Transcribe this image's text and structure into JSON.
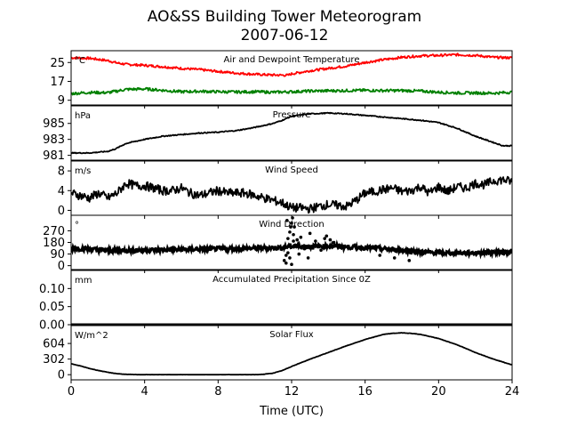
{
  "figure": {
    "title": "AO&SS Building Tower Meteorogram",
    "subtitle": "2007-06-12",
    "xlabel": "Time (UTC)"
  },
  "chart_data": [
    {
      "id": "temp",
      "type": "line",
      "title": "Air and Dewpoint Temperature",
      "unit": "°C",
      "ylim": [
        7,
        30
      ],
      "yticks": [
        9,
        17,
        25
      ],
      "xlim": [
        0,
        24
      ],
      "series": [
        {
          "color": "#ff0000",
          "x": [
            0,
            1,
            2,
            2.5,
            3,
            4,
            5,
            6,
            7,
            8,
            9,
            10,
            11,
            11.8,
            12,
            13,
            14,
            15,
            16,
            17,
            18,
            19,
            20,
            21,
            22,
            23,
            24
          ],
          "y": [
            27,
            26.8,
            25.8,
            24.8,
            24.2,
            23.8,
            23.2,
            22.5,
            22,
            21.2,
            20.5,
            20,
            19.7,
            19.6,
            20.2,
            21.5,
            22.5,
            23.5,
            25,
            26.2,
            27.2,
            27.8,
            28,
            28.3,
            28,
            27.2,
            27
          ]
        },
        {
          "color": "#008000",
          "x": [
            0,
            1,
            2,
            3,
            4,
            5,
            6,
            7,
            8,
            9,
            10,
            11,
            12,
            13,
            14,
            15,
            16,
            17,
            18,
            19,
            20,
            21,
            22,
            23,
            24
          ],
          "y": [
            11.8,
            12.3,
            12.2,
            13.6,
            13.8,
            13.2,
            12.6,
            12.8,
            12.6,
            12.5,
            12.6,
            12.4,
            12.6,
            12.9,
            13,
            13.1,
            13.2,
            13.1,
            13.1,
            12.9,
            12.4,
            12.1,
            12.1,
            12,
            12.4
          ]
        }
      ]
    },
    {
      "id": "pres",
      "type": "line",
      "title": "Pressure",
      "unit": "hPa",
      "ylim": [
        980.4,
        987.2
      ],
      "yticks": [
        981,
        983,
        985
      ],
      "xlim": [
        0,
        24
      ],
      "series": [
        {
          "color": "#000000",
          "x": [
            0,
            1,
            2,
            2.4,
            3,
            4,
            5,
            6,
            7,
            8,
            9,
            10,
            11,
            11.5,
            12,
            13,
            14,
            15,
            16,
            17,
            18,
            19,
            20,
            21,
            22,
            23,
            23.5,
            24
          ],
          "y": [
            981.3,
            981.3,
            981.5,
            981.8,
            982.5,
            983,
            983.4,
            983.6,
            983.8,
            983.9,
            984.1,
            984.5,
            985,
            985.4,
            985.9,
            986.2,
            986.3,
            986.2,
            986,
            985.8,
            985.6,
            985.4,
            985.1,
            984.4,
            983.4,
            982.6,
            982.2,
            982.2
          ]
        }
      ]
    },
    {
      "id": "wspd",
      "type": "line",
      "title": "Wind Speed",
      "unit": "m/s",
      "ylim": [
        -1,
        10
      ],
      "yticks": [
        0,
        4,
        8
      ],
      "xlim": [
        0,
        24
      ],
      "series": [
        {
          "color": "#000000",
          "x": [
            0,
            0.5,
            1,
            1.5,
            2,
            2.5,
            3,
            3.5,
            4,
            4.5,
            5,
            5.5,
            6,
            6.5,
            7,
            7.5,
            8,
            8.5,
            9,
            9.5,
            10,
            10.5,
            11,
            11.5,
            12,
            12.5,
            13,
            13.5,
            14,
            14.5,
            15,
            15.5,
            16,
            16.5,
            17,
            17.5,
            18,
            18.5,
            19,
            19.5,
            20,
            20.5,
            21,
            21.5,
            22,
            22.5,
            23,
            23.5,
            24
          ],
          "y": [
            3.5,
            3,
            2.5,
            3.5,
            2.5,
            3.5,
            5.5,
            5,
            5,
            4.5,
            4,
            4,
            4.5,
            3.5,
            3,
            3.5,
            4,
            3.5,
            3.5,
            3.5,
            3,
            2.5,
            2,
            1.5,
            0.5,
            0.5,
            0.3,
            0.8,
            1.2,
            1,
            0.8,
            2,
            3.5,
            3.8,
            4.2,
            4.5,
            3.8,
            4,
            4.8,
            3.5,
            4.8,
            3.8,
            4.8,
            4.5,
            5.5,
            5.2,
            6,
            6.2,
            5.8
          ]
        }
      ]
    },
    {
      "id": "wdir",
      "type": "scatter",
      "title": "Wind Direction",
      "unit": "°",
      "ylim": [
        -30,
        390
      ],
      "yticks": [
        0,
        90,
        180,
        270
      ],
      "xlim": [
        0,
        24
      ],
      "series": [
        {
          "color": "#000000",
          "band": {
            "x": [
              0,
              1,
              2,
              3,
              4,
              5,
              6,
              7,
              8,
              9,
              10,
              11,
              11.5,
              12,
              12.5,
              13,
              14,
              15,
              16,
              17,
              18,
              19,
              20,
              21,
              22,
              23,
              24
            ],
            "y": [
              135,
              128,
              118,
              118,
              120,
              122,
              125,
              128,
              130,
              132,
              135,
              138,
              140,
              150,
              150,
              148,
              152,
              145,
              140,
              130,
              120,
              105,
              100,
              98,
              100,
              105,
              108
            ]
          },
          "scatter_x": [
            11.6,
            11.7,
            11.8,
            11.9,
            11.95,
            12,
            12.05,
            12.1,
            12.2,
            11.7,
            11.8,
            11.9,
            12.0,
            12.1,
            12.3,
            12.5,
            12.7,
            12.9,
            13.1,
            13.3,
            13.6,
            13.9,
            14.1,
            14.3,
            14.6,
            12.4,
            13.0,
            13.8,
            16.8,
            17.6,
            18.4,
            11.75,
            12.15
          ],
          "scatter_y": [
            40,
            80,
            210,
            260,
            300,
            330,
            370,
            240,
            160,
            20,
            100,
            60,
            10,
            190,
            200,
            220,
            130,
            60,
            150,
            190,
            120,
            230,
            200,
            180,
            160,
            90,
            250,
            210,
            80,
            60,
            40,
            350,
            300
          ]
        }
      ]
    },
    {
      "id": "precip",
      "type": "line",
      "title": "Accumulated Precipitation Since 0Z",
      "unit": "mm",
      "ylim": [
        0,
        0.15
      ],
      "yticks": [
        0.0,
        0.05,
        0.1
      ],
      "ytick_labels": [
        "0.00",
        "0.05",
        "0.10"
      ],
      "xlim": [
        0,
        24
      ],
      "series": [
        {
          "color": "#000000",
          "x": [
            0,
            24
          ],
          "y": [
            0,
            0
          ]
        }
      ]
    },
    {
      "id": "solar",
      "type": "line",
      "title": "Solar Flux",
      "unit": "W/m^2",
      "ylim": [
        -100,
        950
      ],
      "yticks": [
        0,
        302,
        604
      ],
      "xlim": [
        0,
        24
      ],
      "xticks": [
        0,
        4,
        8,
        12,
        16,
        20,
        24
      ],
      "series": [
        {
          "color": "#000000",
          "x": [
            0,
            0.5,
            1,
            1.5,
            2,
            2.5,
            3,
            4,
            5,
            6,
            7,
            8,
            9,
            10,
            10.5,
            11,
            11.5,
            12,
            13,
            14,
            15,
            16,
            17,
            17.5,
            18,
            18.5,
            19,
            20,
            21,
            22,
            23,
            24
          ],
          "y": [
            210,
            170,
            120,
            80,
            45,
            20,
            5,
            0,
            0,
            0,
            0,
            0,
            0,
            0,
            8,
            30,
            80,
            160,
            300,
            430,
            560,
            680,
            780,
            800,
            810,
            800,
            780,
            700,
            580,
            430,
            300,
            190
          ]
        }
      ]
    }
  ]
}
